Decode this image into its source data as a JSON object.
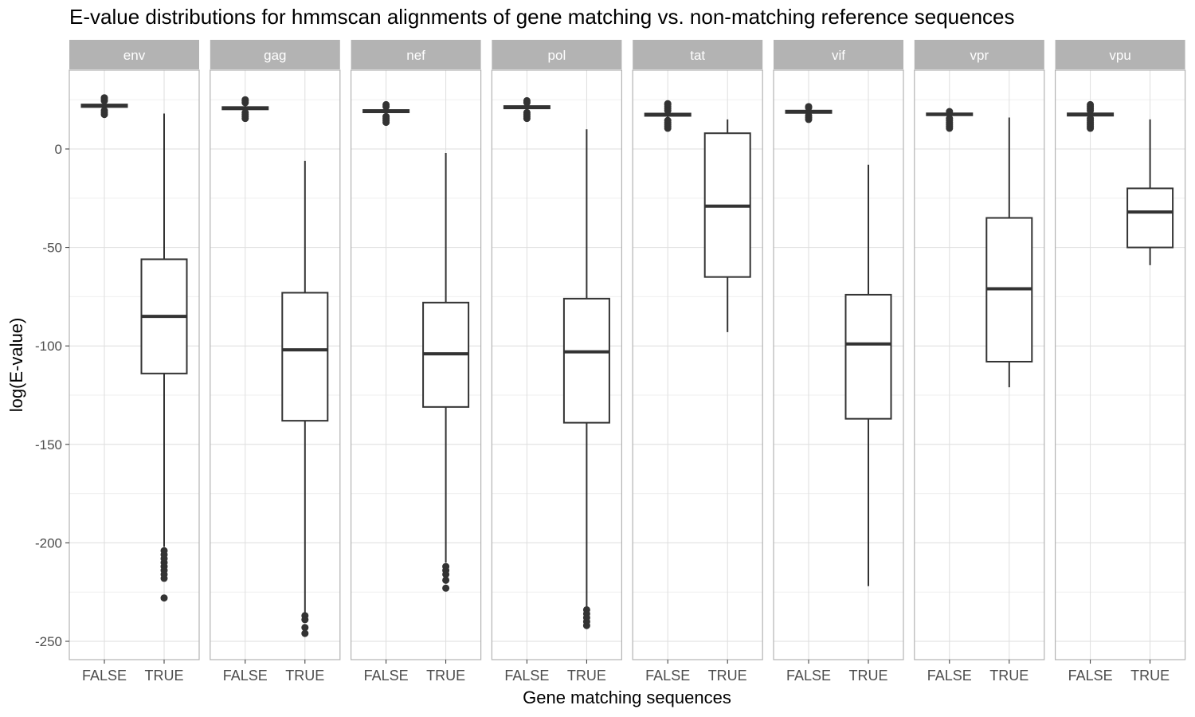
{
  "chart_data": {
    "type": "boxplot",
    "title": "E-value distributions for hmmscan alignments of gene matching vs. non-matching reference sequences",
    "xlabel": "Gene matching sequences",
    "ylabel": "log(E-value)",
    "ylim": [
      -260,
      40
    ],
    "y_ticks": [
      0,
      -50,
      -100,
      -150,
      -200,
      -250
    ],
    "y_tick_labels": [
      "0",
      "-50",
      "-100",
      "-150",
      "-200",
      "-250"
    ],
    "grid": true,
    "categories": [
      "FALSE",
      "TRUE"
    ],
    "panels": [
      {
        "name": "env",
        "boxes": [
          {
            "category": "FALSE",
            "whisker_low": 20.5,
            "q1": 21.3,
            "median": 22,
            "q3": 22.6,
            "whisker_high": 23.4,
            "outliers": [
              17.5,
              18.5,
              19.5,
              24.5,
              25.5,
              26
            ]
          },
          {
            "category": "TRUE",
            "whisker_low": -202,
            "q1": -114,
            "median": -85,
            "q3": -56,
            "whisker_high": 18,
            "outliers": [
              -204,
              -206,
              -208,
              -210,
              -212,
              -214,
              -216,
              -218,
              -228
            ]
          }
        ]
      },
      {
        "name": "gag",
        "boxes": [
          {
            "category": "FALSE",
            "whisker_low": 19.2,
            "q1": 20.1,
            "median": 20.7,
            "q3": 21.3,
            "whisker_high": 22.2,
            "outliers": [
              15.5,
              16.5,
              17.5,
              18.5,
              23.5,
              24.5,
              25
            ]
          },
          {
            "category": "TRUE",
            "whisker_low": -236,
            "q1": -138,
            "median": -102,
            "q3": -73,
            "whisker_high": -6,
            "outliers": [
              -237,
              -239,
              -243,
              -246
            ]
          }
        ]
      },
      {
        "name": "nef",
        "boxes": [
          {
            "category": "FALSE",
            "whisker_low": 17.8,
            "q1": 18.6,
            "median": 19.2,
            "q3": 19.8,
            "whisker_high": 20.6,
            "outliers": [
              13.5,
              14.5,
              15.5,
              16.5,
              21.5,
              22.5
            ]
          },
          {
            "category": "TRUE",
            "whisker_low": -210,
            "q1": -131,
            "median": -104,
            "q3": -78,
            "whisker_high": -2,
            "outliers": [
              -212,
              -214,
              -216,
              -219,
              -223
            ]
          }
        ]
      },
      {
        "name": "pol",
        "boxes": [
          {
            "category": "FALSE",
            "whisker_low": 19.8,
            "q1": 20.6,
            "median": 21.2,
            "q3": 21.8,
            "whisker_high": 22.6,
            "outliers": [
              15.5,
              16.5,
              17.5,
              18.5,
              23.5,
              24.5
            ]
          },
          {
            "category": "TRUE",
            "whisker_low": -233,
            "q1": -139,
            "median": -103,
            "q3": -76,
            "whisker_high": 10,
            "outliers": [
              -234,
              -236,
              -238,
              -240,
              -242
            ]
          }
        ]
      },
      {
        "name": "tat",
        "boxes": [
          {
            "category": "FALSE",
            "whisker_low": 16,
            "q1": 16.8,
            "median": 17.4,
            "q3": 18,
            "whisker_high": 18.8,
            "outliers": [
              10.5,
              11.5,
              12.5,
              13.5,
              14.5,
              19.5,
              20.5,
              21.5,
              22.5,
              23
            ]
          },
          {
            "category": "TRUE",
            "whisker_low": -93,
            "q1": -65,
            "median": -29,
            "q3": 8,
            "whisker_high": 15,
            "outliers": []
          }
        ]
      },
      {
        "name": "vif",
        "boxes": [
          {
            "category": "FALSE",
            "whisker_low": 17.6,
            "q1": 18.3,
            "median": 18.9,
            "q3": 19.5,
            "whisker_high": 20.2,
            "outliers": [
              15,
              16,
              17,
              21,
              21.5
            ]
          },
          {
            "category": "TRUE",
            "whisker_low": -222,
            "q1": -137,
            "median": -99,
            "q3": -74,
            "whisker_high": -8,
            "outliers": []
          }
        ]
      },
      {
        "name": "vpr",
        "boxes": [
          {
            "category": "FALSE",
            "whisker_low": 16.5,
            "q1": 17.1,
            "median": 17.6,
            "q3": 18.1,
            "whisker_high": 18.8,
            "outliers": [
              10.5,
              11.5,
              12.5,
              13.5,
              14.5,
              15.5,
              19
            ]
          },
          {
            "category": "TRUE",
            "whisker_low": -121,
            "q1": -108,
            "median": -71,
            "q3": -35,
            "whisker_high": 16,
            "outliers": []
          }
        ]
      },
      {
        "name": "vpu",
        "boxes": [
          {
            "category": "FALSE",
            "whisker_low": 16.2,
            "q1": 16.9,
            "median": 17.5,
            "q3": 18.1,
            "whisker_high": 18.9,
            "outliers": [
              10.5,
              11.5,
              12.5,
              13.5,
              14.5,
              15.5,
              19.5,
              20.5,
              21.5,
              22.5
            ]
          },
          {
            "category": "TRUE",
            "whisker_low": -59,
            "q1": -50,
            "median": -32,
            "q3": -20,
            "whisker_high": 15,
            "outliers": []
          }
        ]
      }
    ]
  },
  "colors": {
    "panel_border": "#b3b3b3",
    "strip_fill": "#b3b3b3",
    "strip_text": "#ffffff",
    "grid_major": "#dedede",
    "grid_minor": "#efefef",
    "box_line": "#333333",
    "axis_text": "#4d4d4d",
    "title_text": "#000000"
  }
}
